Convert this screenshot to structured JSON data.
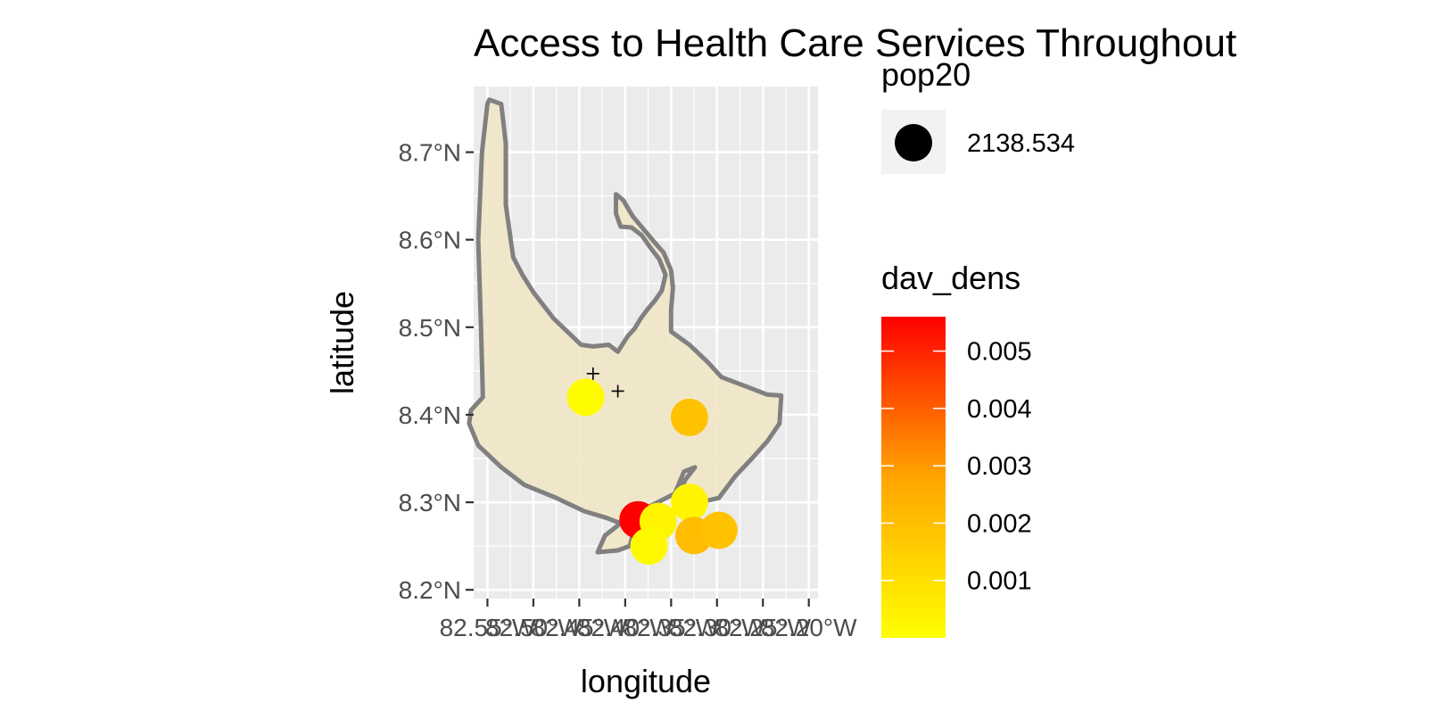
{
  "chart_data": {
    "type": "scatter",
    "title": "Access to Health Care Services Throughout",
    "xlabel": "longitude",
    "ylabel": "latitude",
    "xlim": [
      82.565,
      82.19
    ],
    "ylim": [
      8.19,
      8.775
    ],
    "x_ticks": [
      82.55,
      82.5,
      82.45,
      82.4,
      82.35,
      82.3,
      82.25,
      82.2
    ],
    "x_tick_labels": [
      "82.55°W",
      "82.50°W",
      "82.45°W",
      "82.40°W",
      "82.35°W",
      "82.30°W",
      "82.25°W",
      "82.20°W"
    ],
    "y_ticks": [
      8.2,
      8.3,
      8.4,
      8.5,
      8.6,
      8.7
    ],
    "y_tick_labels": [
      "8.2°N",
      "8.3°N",
      "8.4°N",
      "8.5°N",
      "8.6°N",
      "8.7°N"
    ],
    "grid": true,
    "panel_color": "#ebebeb",
    "region": {
      "fill": "#f1e6c6",
      "stroke": "#808080",
      "outline": [
        [
          82.548,
          8.76
        ],
        [
          82.535,
          8.755
        ],
        [
          82.53,
          8.71
        ],
        [
          82.53,
          8.64
        ],
        [
          82.522,
          8.58
        ],
        [
          82.512,
          8.56
        ],
        [
          82.5,
          8.54
        ],
        [
          82.478,
          8.51
        ],
        [
          82.46,
          8.492
        ],
        [
          82.448,
          8.48
        ],
        [
          82.435,
          8.478
        ],
        [
          82.418,
          8.48
        ],
        [
          82.408,
          8.472
        ],
        [
          82.402,
          8.482
        ],
        [
          82.397,
          8.49
        ],
        [
          82.39,
          8.498
        ],
        [
          82.383,
          8.51
        ],
        [
          82.376,
          8.52
        ],
        [
          82.368,
          8.53
        ],
        [
          82.36,
          8.542
        ],
        [
          82.356,
          8.56
        ],
        [
          82.363,
          8.578
        ],
        [
          82.372,
          8.59
        ],
        [
          82.382,
          8.605
        ],
        [
          82.393,
          8.614
        ],
        [
          82.405,
          8.615
        ],
        [
          82.41,
          8.63
        ],
        [
          82.41,
          8.652
        ],
        [
          82.402,
          8.645
        ],
        [
          82.392,
          8.627
        ],
        [
          82.38,
          8.612
        ],
        [
          82.368,
          8.597
        ],
        [
          82.358,
          8.585
        ],
        [
          82.35,
          8.565
        ],
        [
          82.348,
          8.545
        ],
        [
          82.35,
          8.52
        ],
        [
          82.35,
          8.495
        ],
        [
          82.33,
          8.48
        ],
        [
          82.31,
          8.46
        ],
        [
          82.295,
          8.443
        ],
        [
          82.27,
          8.433
        ],
        [
          82.245,
          8.423
        ],
        [
          82.23,
          8.422
        ],
        [
          82.232,
          8.39
        ],
        [
          82.245,
          8.37
        ],
        [
          82.262,
          8.35
        ],
        [
          82.28,
          8.33
        ],
        [
          82.298,
          8.305
        ],
        [
          82.31,
          8.302
        ],
        [
          82.323,
          8.302
        ],
        [
          82.34,
          8.31
        ],
        [
          82.335,
          8.325
        ],
        [
          82.324,
          8.34
        ],
        [
          82.336,
          8.335
        ],
        [
          82.346,
          8.31
        ],
        [
          82.37,
          8.297
        ],
        [
          82.4,
          8.28
        ],
        [
          82.422,
          8.262
        ],
        [
          82.43,
          8.243
        ],
        [
          82.408,
          8.245
        ],
        [
          82.395,
          8.25
        ],
        [
          82.39,
          8.27
        ],
        [
          82.42,
          8.282
        ],
        [
          82.445,
          8.29
        ],
        [
          82.475,
          8.305
        ],
        [
          82.51,
          8.32
        ],
        [
          82.535,
          8.34
        ],
        [
          82.56,
          8.365
        ],
        [
          82.57,
          8.39
        ],
        [
          82.568,
          8.405
        ],
        [
          82.555,
          8.42
        ],
        [
          82.557,
          8.5
        ],
        [
          82.56,
          8.6
        ],
        [
          82.556,
          8.7
        ],
        [
          82.55,
          8.755
        ]
      ]
    },
    "markers": [
      {
        "x": 82.435,
        "y": 8.447
      },
      {
        "x": 82.408,
        "y": 8.427
      }
    ],
    "series": [
      {
        "size_legend_value": 2138.534,
        "points": [
          {
            "x": 82.443,
            "y": 8.42,
            "dav_dens": 0.0001
          },
          {
            "x": 82.33,
            "y": 8.397,
            "dav_dens": 0.0019
          },
          {
            "x": 82.386,
            "y": 8.28,
            "dav_dens": 0.0056
          },
          {
            "x": 82.364,
            "y": 8.278,
            "dav_dens": 0.0003
          },
          {
            "x": 82.374,
            "y": 8.25,
            "dav_dens": 0.0002
          },
          {
            "x": 82.33,
            "y": 8.3,
            "dav_dens": 0.0003
          },
          {
            "x": 82.325,
            "y": 8.262,
            "dav_dens": 0.0021
          },
          {
            "x": 82.298,
            "y": 8.268,
            "dav_dens": 0.0019
          }
        ]
      }
    ],
    "legend": {
      "placement": "right",
      "size_title": "pop20",
      "size_label": "2138.534",
      "color_title": "dav_dens",
      "color_range": [
        0,
        0.0056
      ],
      "color_low": "#ffff00",
      "color_high": "#ff0000",
      "color_breaks": [
        0.005,
        0.004,
        0.003,
        0.002,
        0.001
      ],
      "color_labels": [
        "0.005",
        "0.004",
        "0.003",
        "0.002",
        "0.001"
      ]
    }
  }
}
